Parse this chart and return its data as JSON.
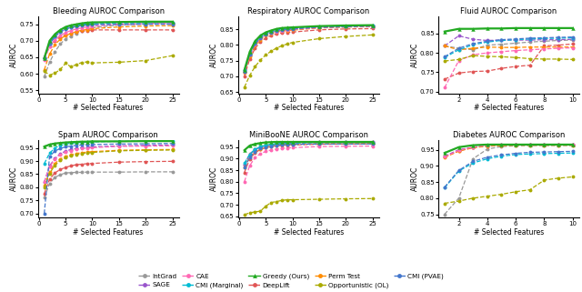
{
  "titles": [
    "Bleeding AUROC Comparison",
    "Respiratory AUROC Comparison",
    "Fluid AUROC Comparison",
    "Spam AUROC Comparison",
    "MiniBooNE AUROC Comparison",
    "Diabetes AUROC Comparison"
  ],
  "xlabel": "# Selected Features",
  "ylabel": "AUROC",
  "methods": [
    "IntGrad",
    "DeepLift",
    "SAGE",
    "Perm Test",
    "CAE",
    "Opportunistic (OL)",
    "CMI (Marginal)",
    "CMI (PVAE)",
    "Greedy (Ours)"
  ],
  "colors": {
    "IntGrad": "#999999",
    "DeepLift": "#e05555",
    "SAGE": "#9955cc",
    "Perm Test": "#ff8c00",
    "CAE": "#ff69b4",
    "Opportunistic (OL)": "#aaaa00",
    "CMI (Marginal)": "#00bcd4",
    "CMI (PVAE)": "#4477cc",
    "Greedy (Ours)": "#22aa22"
  },
  "linestyles": {
    "IntGrad": "--",
    "DeepLift": "--",
    "SAGE": "--",
    "Perm Test": "--",
    "CAE": "--",
    "Opportunistic (OL)": "--",
    "CMI (Marginal)": "--",
    "CMI (PVAE)": "--",
    "Greedy (Ours)": "-"
  },
  "markers": {
    "IntGrad": "o",
    "DeepLift": "o",
    "SAGE": "o",
    "Perm Test": "o",
    "CAE": "o",
    "Opportunistic (OL)": "o",
    "CMI (Marginal)": "o",
    "CMI (PVAE)": "o",
    "Greedy (Ours)": "^"
  },
  "datasets": {
    "Bleeding": {
      "x": [
        1,
        2,
        3,
        4,
        5,
        6,
        7,
        8,
        9,
        10,
        15,
        20,
        25
      ],
      "xticks": [
        0,
        5,
        10,
        15,
        20,
        25
      ],
      "ylim": [
        0.54,
        0.775
      ],
      "yticks": [
        0.55,
        0.6,
        0.65,
        0.7,
        0.75
      ],
      "IntGrad": [
        0.591,
        0.635,
        0.667,
        0.69,
        0.706,
        0.714,
        0.723,
        0.731,
        0.736,
        0.74,
        0.748,
        0.752,
        0.756
      ],
      "DeepLift": [
        0.648,
        0.682,
        0.7,
        0.711,
        0.718,
        0.722,
        0.726,
        0.729,
        0.731,
        0.733,
        0.733,
        0.733,
        0.733
      ],
      "SAGE": [
        0.651,
        0.693,
        0.714,
        0.727,
        0.736,
        0.741,
        0.745,
        0.748,
        0.75,
        0.751,
        0.752,
        0.752,
        0.752
      ],
      "Perm Test": [
        0.612,
        0.66,
        0.688,
        0.705,
        0.716,
        0.722,
        0.728,
        0.732,
        0.734,
        0.737,
        0.742,
        0.745,
        0.746
      ],
      "CAE": [
        0.643,
        0.682,
        0.703,
        0.716,
        0.725,
        0.731,
        0.736,
        0.739,
        0.742,
        0.744,
        0.75,
        0.751,
        0.752
      ],
      "Opportunistic (OL)": [
        0.608,
        0.596,
        0.602,
        0.613,
        0.632,
        0.621,
        0.628,
        0.634,
        0.636,
        0.633,
        0.635,
        0.64,
        0.655
      ],
      "CMI (Marginal)": [
        0.648,
        0.691,
        0.714,
        0.728,
        0.737,
        0.742,
        0.746,
        0.749,
        0.751,
        0.752,
        0.754,
        0.755,
        0.756
      ],
      "CMI (PVAE)": [
        0.648,
        0.69,
        0.713,
        0.726,
        0.735,
        0.74,
        0.743,
        0.746,
        0.748,
        0.749,
        0.749,
        0.75,
        0.75
      ],
      "Greedy (Ours)": [
        0.647,
        0.7,
        0.72,
        0.733,
        0.742,
        0.747,
        0.75,
        0.753,
        0.755,
        0.756,
        0.757,
        0.758,
        0.758
      ]
    },
    "Respiratory": {
      "x": [
        1,
        2,
        3,
        4,
        5,
        6,
        7,
        8,
        9,
        10,
        15,
        20,
        25
      ],
      "xticks": [
        0,
        5,
        10,
        15,
        20,
        25
      ],
      "ylim": [
        0.645,
        0.892
      ],
      "yticks": [
        0.65,
        0.7,
        0.75,
        0.8,
        0.85
      ],
      "IntGrad": [
        0.714,
        0.767,
        0.8,
        0.82,
        0.832,
        0.839,
        0.843,
        0.846,
        0.848,
        0.849,
        0.856,
        0.86,
        0.862
      ],
      "DeepLift": [
        0.7,
        0.755,
        0.789,
        0.81,
        0.822,
        0.83,
        0.835,
        0.838,
        0.84,
        0.841,
        0.848,
        0.851,
        0.852
      ],
      "SAGE": [
        0.718,
        0.77,
        0.803,
        0.822,
        0.834,
        0.84,
        0.845,
        0.848,
        0.849,
        0.851,
        0.856,
        0.859,
        0.86
      ],
      "Perm Test": [
        0.712,
        0.764,
        0.797,
        0.817,
        0.829,
        0.836,
        0.841,
        0.844,
        0.846,
        0.847,
        0.854,
        0.857,
        0.858
      ],
      "CAE": [
        0.715,
        0.768,
        0.801,
        0.82,
        0.832,
        0.839,
        0.843,
        0.846,
        0.848,
        0.849,
        0.855,
        0.858,
        0.859
      ],
      "Opportunistic (OL)": [
        0.665,
        0.703,
        0.731,
        0.752,
        0.768,
        0.78,
        0.79,
        0.797,
        0.803,
        0.808,
        0.82,
        0.827,
        0.832
      ],
      "CMI (Marginal)": [
        0.72,
        0.773,
        0.806,
        0.825,
        0.836,
        0.842,
        0.847,
        0.85,
        0.852,
        0.853,
        0.858,
        0.86,
        0.862
      ],
      "CMI (PVAE)": [
        0.715,
        0.769,
        0.803,
        0.822,
        0.833,
        0.84,
        0.845,
        0.848,
        0.85,
        0.851,
        0.856,
        0.858,
        0.86
      ],
      "Greedy (Ours)": [
        0.72,
        0.778,
        0.812,
        0.83,
        0.84,
        0.846,
        0.851,
        0.854,
        0.855,
        0.856,
        0.86,
        0.862,
        0.863
      ]
    },
    "Fluid": {
      "x": [
        1,
        2,
        3,
        4,
        5,
        6,
        7,
        8,
        9,
        10
      ],
      "xticks": [
        2,
        4,
        6,
        8,
        10
      ],
      "ylim": [
        0.695,
        0.895
      ],
      "yticks": [
        0.7,
        0.75,
        0.8,
        0.85
      ],
      "IntGrad": [
        0.818,
        0.812,
        0.808,
        0.82,
        0.822,
        0.825,
        0.828,
        0.83,
        0.832,
        0.833
      ],
      "DeepLift": [
        0.732,
        0.748,
        0.752,
        0.753,
        0.76,
        0.765,
        0.768,
        0.818,
        0.82,
        0.823
      ],
      "SAGE": [
        0.818,
        0.844,
        0.835,
        0.832,
        0.833,
        0.833,
        0.833,
        0.834,
        0.834,
        0.835
      ],
      "Perm Test": [
        0.818,
        0.808,
        0.812,
        0.815,
        0.814,
        0.814,
        0.815,
        0.815,
        0.815,
        0.815
      ],
      "CAE": [
        0.71,
        0.78,
        0.795,
        0.8,
        0.803,
        0.806,
        0.808,
        0.81,
        0.812,
        0.813
      ],
      "Opportunistic (OL)": [
        0.779,
        0.783,
        0.793,
        0.791,
        0.79,
        0.788,
        0.785,
        0.784,
        0.784,
        0.783
      ],
      "CMI (Marginal)": [
        0.788,
        0.808,
        0.821,
        0.828,
        0.832,
        0.834,
        0.836,
        0.837,
        0.838,
        0.839
      ],
      "CMI (PVAE)": [
        0.79,
        0.812,
        0.824,
        0.83,
        0.834,
        0.836,
        0.838,
        0.839,
        0.84,
        0.841
      ],
      "Greedy (Ours)": [
        0.855,
        0.862,
        0.862,
        0.863,
        0.863,
        0.864,
        0.864,
        0.864,
        0.864,
        0.864
      ]
    },
    "Spam": {
      "x": [
        1,
        2,
        3,
        4,
        5,
        6,
        7,
        8,
        9,
        10,
        15,
        20,
        25
      ],
      "xticks": [
        0,
        5,
        10,
        15,
        20,
        25
      ],
      "ylim": [
        0.685,
        0.98
      ],
      "yticks": [
        0.7,
        0.75,
        0.8,
        0.85,
        0.9,
        0.95
      ],
      "IntGrad": [
        0.76,
        0.815,
        0.838,
        0.848,
        0.855,
        0.856,
        0.857,
        0.857,
        0.858,
        0.858,
        0.858,
        0.859,
        0.859
      ],
      "DeepLift": [
        0.776,
        0.831,
        0.855,
        0.868,
        0.876,
        0.882,
        0.886,
        0.888,
        0.89,
        0.891,
        0.896,
        0.898,
        0.899
      ],
      "SAGE": [
        0.82,
        0.882,
        0.91,
        0.928,
        0.938,
        0.944,
        0.948,
        0.951,
        0.952,
        0.954,
        0.958,
        0.96,
        0.961
      ],
      "Perm Test": [
        0.805,
        0.86,
        0.891,
        0.908,
        0.918,
        0.924,
        0.929,
        0.932,
        0.934,
        0.936,
        0.941,
        0.943,
        0.944
      ],
      "CAE": [
        0.82,
        0.878,
        0.908,
        0.924,
        0.934,
        0.94,
        0.944,
        0.947,
        0.949,
        0.951,
        0.956,
        0.957,
        0.958
      ],
      "Opportunistic (OL)": [
        0.799,
        0.853,
        0.884,
        0.902,
        0.913,
        0.92,
        0.925,
        0.929,
        0.931,
        0.933,
        0.939,
        0.941,
        0.942
      ],
      "CMI (Marginal)": [
        0.89,
        0.93,
        0.95,
        0.96,
        0.965,
        0.968,
        0.97,
        0.971,
        0.972,
        0.973,
        0.975,
        0.976,
        0.977
      ],
      "CMI (PVAE)": [
        0.7,
        0.918,
        0.938,
        0.948,
        0.954,
        0.957,
        0.96,
        0.961,
        0.962,
        0.963,
        0.965,
        0.966,
        0.967
      ],
      "Greedy (Ours)": [
        0.955,
        0.963,
        0.967,
        0.969,
        0.971,
        0.972,
        0.973,
        0.974,
        0.974,
        0.975,
        0.975,
        0.976,
        0.976
      ]
    },
    "MiniBooNE": {
      "x": [
        1,
        2,
        3,
        4,
        5,
        6,
        7,
        8,
        9,
        10,
        15,
        20,
        25
      ],
      "xticks": [
        0,
        5,
        10,
        15,
        20,
        25
      ],
      "ylim": [
        0.645,
        0.98
      ],
      "yticks": [
        0.65,
        0.7,
        0.75,
        0.8,
        0.85,
        0.9,
        0.95
      ],
      "IntGrad": [
        0.875,
        0.92,
        0.94,
        0.95,
        0.956,
        0.96,
        0.963,
        0.965,
        0.966,
        0.967,
        0.97,
        0.97,
        0.97
      ],
      "DeepLift": [
        0.84,
        0.898,
        0.925,
        0.939,
        0.947,
        0.952,
        0.955,
        0.957,
        0.958,
        0.959,
        0.962,
        0.963,
        0.963
      ],
      "SAGE": [
        0.874,
        0.918,
        0.939,
        0.95,
        0.956,
        0.96,
        0.963,
        0.965,
        0.966,
        0.967,
        0.97,
        0.97,
        0.97
      ],
      "Perm Test": [
        0.862,
        0.908,
        0.93,
        0.942,
        0.949,
        0.954,
        0.957,
        0.959,
        0.96,
        0.961,
        0.965,
        0.965,
        0.966
      ],
      "CAE": [
        0.8,
        0.87,
        0.904,
        0.921,
        0.931,
        0.937,
        0.941,
        0.944,
        0.946,
        0.947,
        0.952,
        0.953,
        0.954
      ],
      "Opportunistic (OL)": [
        0.657,
        0.666,
        0.669,
        0.673,
        0.694,
        0.71,
        0.714,
        0.719,
        0.722,
        0.722,
        0.724,
        0.726,
        0.727
      ],
      "CMI (Marginal)": [
        0.88,
        0.918,
        0.94,
        0.951,
        0.958,
        0.961,
        0.964,
        0.966,
        0.967,
        0.967,
        0.969,
        0.969,
        0.969
      ],
      "CMI (PVAE)": [
        0.86,
        0.907,
        0.93,
        0.943,
        0.95,
        0.954,
        0.957,
        0.959,
        0.96,
        0.961,
        0.963,
        0.963,
        0.963
      ],
      "Greedy (Ours)": [
        0.936,
        0.956,
        0.963,
        0.967,
        0.97,
        0.971,
        0.972,
        0.972,
        0.972,
        0.972,
        0.972,
        0.972,
        0.972
      ]
    },
    "Diabetes": {
      "x": [
        1,
        2,
        3,
        4,
        5,
        6,
        7,
        8,
        9,
        10
      ],
      "xticks": [
        2,
        4,
        6,
        8,
        10
      ],
      "ylim": [
        0.74,
        0.98
      ],
      "yticks": [
        0.75,
        0.8,
        0.85,
        0.9,
        0.95
      ],
      "IntGrad": [
        0.75,
        0.8,
        0.922,
        0.952,
        0.96,
        0.962,
        0.963,
        0.963,
        0.963,
        0.963
      ],
      "DeepLift": [
        0.928,
        0.946,
        0.957,
        0.962,
        0.964,
        0.965,
        0.965,
        0.965,
        0.965,
        0.965
      ],
      "SAGE": [
        0.93,
        0.95,
        0.958,
        0.963,
        0.965,
        0.966,
        0.966,
        0.966,
        0.966,
        0.966
      ],
      "Perm Test": [
        0.926,
        0.946,
        0.956,
        0.961,
        0.963,
        0.964,
        0.964,
        0.964,
        0.964,
        0.964
      ],
      "CAE": [
        0.928,
        0.948,
        0.958,
        0.963,
        0.965,
        0.965,
        0.965,
        0.965,
        0.965,
        0.965
      ],
      "Opportunistic (OL)": [
        0.784,
        0.791,
        0.8,
        0.806,
        0.812,
        0.82,
        0.826,
        0.856,
        0.862,
        0.866
      ],
      "CMI (Marginal)": [
        0.832,
        0.884,
        0.909,
        0.922,
        0.93,
        0.935,
        0.937,
        0.938,
        0.939,
        0.94
      ],
      "CMI (PVAE)": [
        0.834,
        0.886,
        0.914,
        0.927,
        0.934,
        0.939,
        0.942,
        0.943,
        0.944,
        0.945
      ],
      "Greedy (Ours)": [
        0.94,
        0.958,
        0.964,
        0.966,
        0.966,
        0.966,
        0.966,
        0.966,
        0.966,
        0.966
      ]
    }
  },
  "legend_entries": [
    {
      "label": "IntGrad",
      "color": "#999999",
      "ls": "--",
      "marker": "o"
    },
    {
      "label": "SAGE",
      "color": "#9955cc",
      "ls": "--",
      "marker": "o"
    },
    {
      "label": "CAE",
      "color": "#ff69b4",
      "ls": "--",
      "marker": "o"
    },
    {
      "label": "CMI (Marginal)",
      "color": "#00bcd4",
      "ls": "--",
      "marker": "o"
    },
    {
      "label": "Greedy (Ours)",
      "color": "#22aa22",
      "ls": "-",
      "marker": "^"
    },
    {
      "label": "DeepLift",
      "color": "#e05555",
      "ls": "--",
      "marker": "o"
    },
    {
      "label": "Perm Test",
      "color": "#ff8c00",
      "ls": "--",
      "marker": "o"
    },
    {
      "label": "Opportunistic (OL)",
      "color": "#aaaa00",
      "ls": "--",
      "marker": "o"
    },
    {
      "label": "CMI (PVAE)",
      "color": "#4477cc",
      "ls": "--",
      "marker": "o"
    }
  ]
}
